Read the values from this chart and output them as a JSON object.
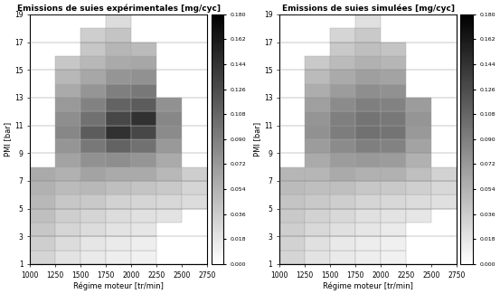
{
  "title1": "Emissions de suies expérimentales [mg/cyc]",
  "title2": "Emissions de suies simulées [mg/cyc]",
  "xlabel": "Régime moteur [tr/min]",
  "ylabel": "PMI [bar]",
  "rpm_edges": [
    1000,
    1250,
    1500,
    1750,
    2000,
    2250,
    2500,
    2750
  ],
  "pmi_edges": [
    1,
    2,
    3,
    4,
    5,
    6,
    7,
    8,
    9,
    10,
    11,
    12,
    13,
    14,
    15,
    16,
    17,
    18,
    19
  ],
  "pmi_ticks": [
    1,
    3,
    5,
    7,
    9,
    11,
    13,
    15,
    17,
    19
  ],
  "vmin": 0,
  "vmax": 0.18,
  "cbar_ticks": [
    0,
    0.018,
    0.036,
    0.054,
    0.072,
    0.09,
    0.108,
    0.126,
    0.144,
    0.162,
    0.18
  ],
  "figsize": [
    5.53,
    3.25
  ],
  "dpi": 100,
  "exp_matrix": [
    [
      0.03,
      0.02,
      0.015,
      0.012,
      0.01,
      -1,
      -1
    ],
    [
      0.035,
      0.025,
      0.018,
      0.015,
      0.012,
      -1,
      -1
    ],
    [
      0.04,
      0.03,
      0.025,
      0.02,
      0.018,
      -1,
      -1
    ],
    [
      0.045,
      0.035,
      0.03,
      0.025,
      0.022,
      0.02,
      -1
    ],
    [
      0.05,
      0.04,
      0.038,
      0.032,
      0.03,
      0.028,
      0.025
    ],
    [
      0.055,
      0.048,
      0.05,
      0.045,
      0.042,
      0.038,
      0.03
    ],
    [
      0.06,
      0.055,
      0.065,
      0.06,
      0.06,
      0.05,
      0.035
    ],
    [
      -1,
      0.065,
      0.078,
      0.08,
      0.075,
      0.06,
      -1
    ],
    [
      -1,
      0.075,
      0.095,
      0.11,
      0.1,
      0.072,
      -1
    ],
    [
      -1,
      0.085,
      0.115,
      0.145,
      0.13,
      0.082,
      -1
    ],
    [
      -1,
      0.08,
      0.1,
      0.13,
      0.145,
      0.085,
      -1
    ],
    [
      -1,
      0.072,
      0.088,
      0.11,
      0.115,
      0.078,
      -1
    ],
    [
      -1,
      0.06,
      0.075,
      0.09,
      0.095,
      -1,
      -1
    ],
    [
      -1,
      0.05,
      0.062,
      0.075,
      0.078,
      -1,
      -1
    ],
    [
      -1,
      0.04,
      0.05,
      0.06,
      0.062,
      -1,
      -1
    ],
    [
      -1,
      -1,
      0.04,
      0.052,
      0.048,
      -1,
      -1
    ],
    [
      -1,
      -1,
      0.035,
      0.042,
      -1,
      -1,
      -1
    ],
    [
      -1,
      -1,
      -1,
      0.025,
      -1,
      -1,
      -1
    ]
  ],
  "sim_matrix": [
    [
      0.03,
      0.02,
      0.015,
      0.012,
      0.01,
      -1,
      -1
    ],
    [
      0.032,
      0.022,
      0.016,
      0.013,
      0.011,
      -1,
      -1
    ],
    [
      0.035,
      0.028,
      0.022,
      0.018,
      0.015,
      -1,
      -1
    ],
    [
      0.038,
      0.032,
      0.028,
      0.022,
      0.02,
      0.018,
      -1
    ],
    [
      0.042,
      0.038,
      0.035,
      0.03,
      0.028,
      0.025,
      0.022
    ],
    [
      0.048,
      0.045,
      0.045,
      0.04,
      0.038,
      0.034,
      0.028
    ],
    [
      0.052,
      0.052,
      0.06,
      0.055,
      0.055,
      0.045,
      0.032
    ],
    [
      -1,
      0.06,
      0.07,
      0.072,
      0.07,
      0.055,
      -1
    ],
    [
      -1,
      0.07,
      0.082,
      0.09,
      0.088,
      0.065,
      -1
    ],
    [
      -1,
      0.078,
      0.092,
      0.1,
      0.098,
      0.072,
      -1
    ],
    [
      -1,
      0.075,
      0.09,
      0.098,
      0.095,
      0.075,
      -1
    ],
    [
      -1,
      0.068,
      0.082,
      0.09,
      0.088,
      0.07,
      -1
    ],
    [
      -1,
      0.058,
      0.07,
      0.08,
      0.078,
      -1,
      -1
    ],
    [
      -1,
      0.048,
      0.06,
      0.068,
      0.065,
      -1,
      -1
    ],
    [
      -1,
      0.038,
      0.048,
      0.055,
      0.052,
      -1,
      -1
    ],
    [
      -1,
      -1,
      0.038,
      0.045,
      0.042,
      -1,
      -1
    ],
    [
      -1,
      -1,
      0.03,
      0.038,
      -1,
      -1,
      -1
    ],
    [
      -1,
      -1,
      -1,
      0.022,
      -1,
      -1,
      -1
    ]
  ]
}
